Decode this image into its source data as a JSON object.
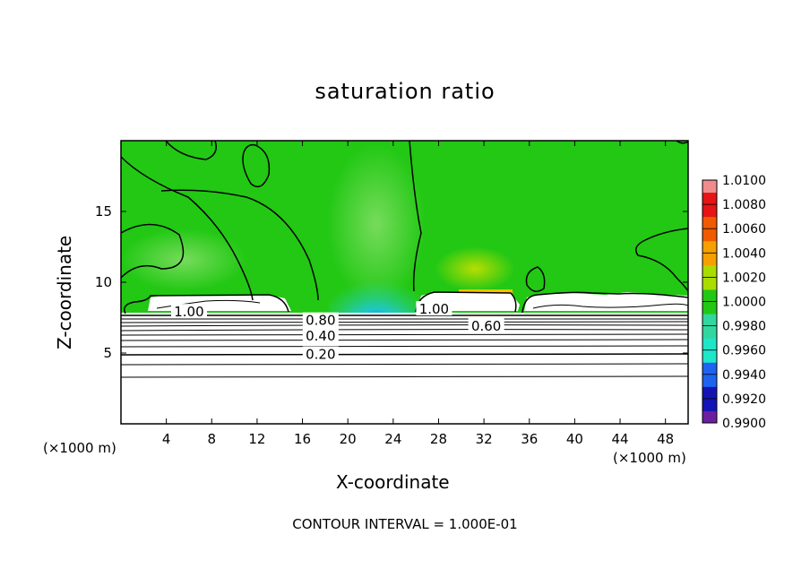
{
  "chart_data": {
    "type": "heatmap",
    "title": "saturation ratio",
    "xlabel": "X-coordinate",
    "ylabel": "Z-coordinate",
    "x_unit_label": "(×1000 m)",
    "x_unit_label_right": "(×1000 m)",
    "xlim": [
      0,
      50
    ],
    "ylim": [
      0,
      20
    ],
    "x_ticks": [
      4,
      8,
      12,
      16,
      20,
      24,
      28,
      32,
      36,
      40,
      44,
      48
    ],
    "y_ticks": [
      5,
      10,
      15
    ],
    "colorbar": {
      "levels": [
        "0.9900",
        "0.9920",
        "0.9940",
        "0.9960",
        "0.9980",
        "1.0000",
        "1.0020",
        "1.0040",
        "1.0060",
        "1.0080",
        "1.0100"
      ],
      "colors": [
        "#6b1fa0",
        "#1414b4",
        "#1e64f0",
        "#1ee6c8",
        "#32d7a0",
        "#22c814",
        "#aadc00",
        "#f5a000",
        "#f05a00",
        "#e61414",
        "#f08c8c"
      ]
    },
    "contour_labels": [
      {
        "text": "1.00",
        "x": 6.0,
        "z": 7.9
      },
      {
        "text": "0.80",
        "x": 17.6,
        "z": 7.3
      },
      {
        "text": "0.40",
        "x": 17.6,
        "z": 6.2
      },
      {
        "text": "0.20",
        "x": 17.6,
        "z": 4.9
      },
      {
        "text": "1.00",
        "x": 27.6,
        "z": 8.1
      },
      {
        "text": "0.60",
        "x": 32.2,
        "z": 6.9
      }
    ],
    "contour_interval": "CONTOUR INTERVAL = 1.000E-01"
  }
}
